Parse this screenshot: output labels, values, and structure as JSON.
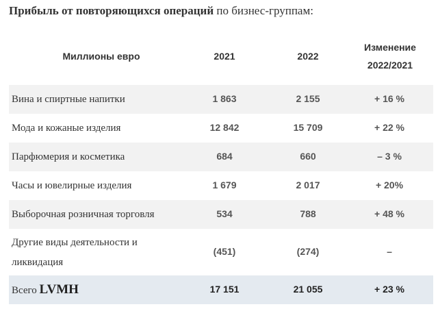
{
  "title": {
    "bold": "Прибыль от повторяющихся операций",
    "rest": "по бизнес-группам:"
  },
  "table": {
    "headers": {
      "label": "Миллионы евро",
      "y2021": "2021",
      "y2022": "2022",
      "change_line1": "Изменение",
      "change_line2": "2022/2021"
    },
    "rows": [
      {
        "label": "Вина и спиртные напитки",
        "v2021": "1 863",
        "v2022": "2 155",
        "change": "+ 16 %"
      },
      {
        "label": "Мода и кожаные изделия",
        "v2021": "12 842",
        "v2022": "15 709",
        "change": "+ 22 %"
      },
      {
        "label": "Парфюмерия и косметика",
        "v2021": "684",
        "v2022": "660",
        "change": "– 3 %"
      },
      {
        "label": "Часы и ювелирные изделия",
        "v2021": "1 679",
        "v2022": "2 017",
        "change": "+ 20%"
      },
      {
        "label": "Выборочная розничная торговля",
        "v2021": "534",
        "v2022": "788",
        "change": "+ 48 %"
      },
      {
        "label_line1": "Другие виды деятельности и",
        "label_line2": "ликвидация",
        "v2021": "(451)",
        "v2022": "(274)",
        "change": "–"
      }
    ],
    "total": {
      "label_prefix": "Всего",
      "label_brand": "LVMH",
      "v2021": "17 151",
      "v2022": "21 055",
      "change": "+ 23 %"
    }
  }
}
